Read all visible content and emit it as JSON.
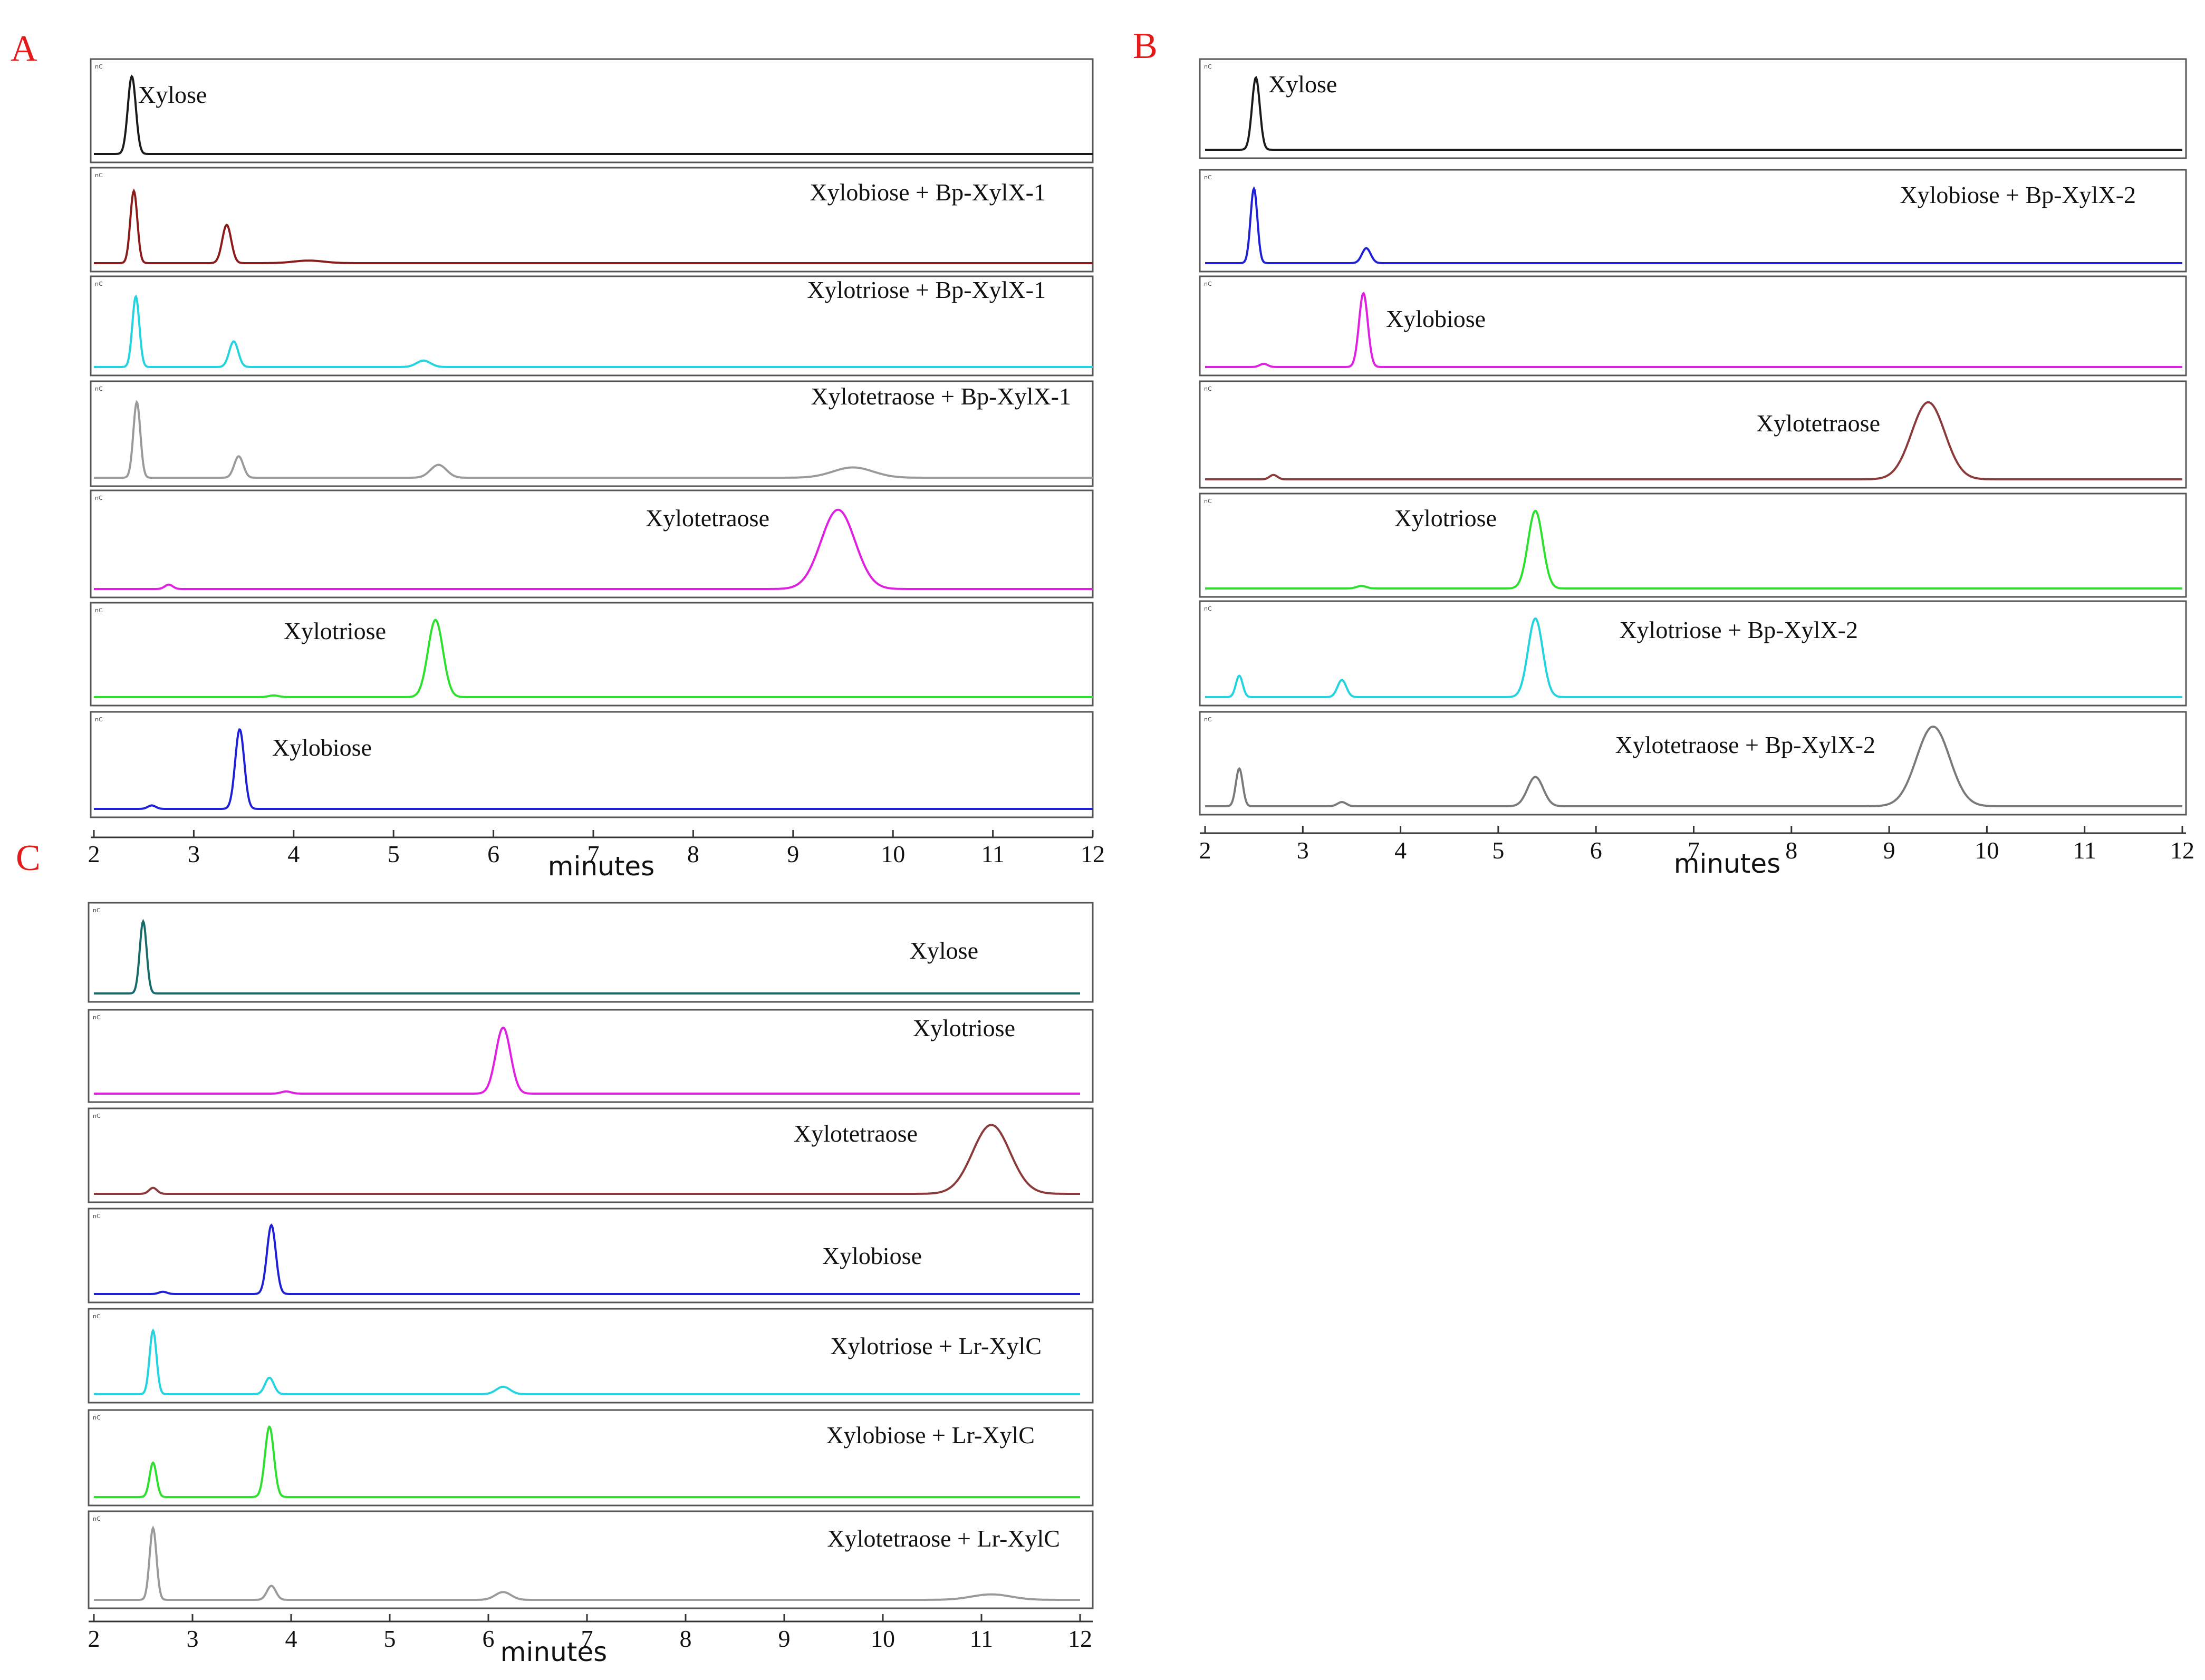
{
  "figure": {
    "panels": [
      {
        "letter": "A",
        "letter_color": "#e31b1b",
        "xlabel": "minutes",
        "x_ticks": [
          2,
          3,
          4,
          5,
          6,
          7,
          8,
          9,
          10,
          11,
          12
        ]
      },
      {
        "letter": "B",
        "letter_color": "#e31b1b",
        "xlabel": "minutes",
        "x_ticks": [
          2,
          3,
          4,
          5,
          6,
          7,
          8,
          9,
          10,
          11,
          12
        ]
      },
      {
        "letter": "C",
        "letter_color": "#e31b1b",
        "xlabel": "minutes",
        "x_ticks": [
          2,
          3,
          4,
          5,
          6,
          7,
          8,
          9,
          10,
          11,
          12
        ]
      }
    ]
  },
  "chart_data": [
    {
      "type": "line",
      "panel": "A",
      "xlabel": "minutes",
      "xlim": [
        2,
        12
      ],
      "traces": [
        {
          "label": "Xylose",
          "color": "#1a1a1a",
          "peaks": [
            {
              "x": 2.38,
              "height": 0.92,
              "width": 0.04
            }
          ]
        },
        {
          "label": "Xylobiose + Bp-XylX-1",
          "color": "#8b1a1a",
          "peaks": [
            {
              "x": 2.4,
              "height": 0.85,
              "width": 0.035
            },
            {
              "x": 3.33,
              "height": 0.45,
              "width": 0.045
            },
            {
              "x": 4.15,
              "height": 0.03,
              "width": 0.15
            }
          ]
        },
        {
          "label": "Xylotriose + Bp-XylX-1",
          "color": "#22d4e0",
          "peaks": [
            {
              "x": 2.42,
              "height": 0.88,
              "width": 0.035
            },
            {
              "x": 3.4,
              "height": 0.32,
              "width": 0.045
            },
            {
              "x": 5.3,
              "height": 0.08,
              "width": 0.07
            }
          ]
        },
        {
          "label": "Xylotetraose  + Bp-XylX-1",
          "color": "#9a9a9a",
          "peaks": [
            {
              "x": 2.43,
              "height": 0.88,
              "width": 0.035
            },
            {
              "x": 3.45,
              "height": 0.25,
              "width": 0.045
            },
            {
              "x": 5.45,
              "height": 0.15,
              "width": 0.08
            },
            {
              "x": 9.6,
              "height": 0.12,
              "width": 0.2
            }
          ]
        },
        {
          "label": "Xylotetraose",
          "color": "#e020e0",
          "peaks": [
            {
              "x": 2.75,
              "height": 0.05,
              "width": 0.04
            },
            {
              "x": 9.45,
              "height": 0.9,
              "width": 0.17
            }
          ]
        },
        {
          "label": "Xylotriose",
          "color": "#2ee02e",
          "peaks": [
            {
              "x": 3.8,
              "height": 0.02,
              "width": 0.05
            },
            {
              "x": 5.42,
              "height": 0.92,
              "width": 0.075
            }
          ]
        },
        {
          "label": "Xylobiose",
          "color": "#1f1fd6",
          "peaks": [
            {
              "x": 2.58,
              "height": 0.04,
              "width": 0.04
            },
            {
              "x": 3.46,
              "height": 0.92,
              "width": 0.045
            }
          ]
        }
      ]
    },
    {
      "type": "line",
      "panel": "B",
      "xlabel": "minutes",
      "xlim": [
        2,
        12
      ],
      "traces": [
        {
          "label": "Xylose",
          "color": "#1a1a1a",
          "peaks": [
            {
              "x": 2.52,
              "height": 0.9,
              "width": 0.04
            }
          ]
        },
        {
          "label": "Xylobiose + Bp-XylX-2",
          "color": "#1f1fd6",
          "peaks": [
            {
              "x": 2.5,
              "height": 0.9,
              "width": 0.035
            },
            {
              "x": 3.65,
              "height": 0.18,
              "width": 0.045
            }
          ]
        },
        {
          "label": "Xylobiose",
          "color": "#e020e0",
          "peaks": [
            {
              "x": 2.6,
              "height": 0.04,
              "width": 0.04
            },
            {
              "x": 3.62,
              "height": 0.92,
              "width": 0.045
            }
          ]
        },
        {
          "label": "Xylotetraose",
          "color": "#8b3a3a",
          "peaks": [
            {
              "x": 2.7,
              "height": 0.05,
              "width": 0.04
            },
            {
              "x": 9.4,
              "height": 0.88,
              "width": 0.17
            }
          ]
        },
        {
          "label": "Xylotriose",
          "color": "#2ee02e",
          "peaks": [
            {
              "x": 3.6,
              "height": 0.03,
              "width": 0.05
            },
            {
              "x": 5.38,
              "height": 0.92,
              "width": 0.075
            }
          ]
        },
        {
          "label": "Xylotriose + Bp-XylX-2",
          "color": "#22d4e0",
          "peaks": [
            {
              "x": 2.35,
              "height": 0.25,
              "width": 0.035
            },
            {
              "x": 3.4,
              "height": 0.2,
              "width": 0.045
            },
            {
              "x": 5.38,
              "height": 0.92,
              "width": 0.075
            }
          ]
        },
        {
          "label": "Xylotetraose  + Bp-XylX-2",
          "color": "#7a7a7a",
          "peaks": [
            {
              "x": 2.35,
              "height": 0.45,
              "width": 0.035
            },
            {
              "x": 3.4,
              "height": 0.05,
              "width": 0.045
            },
            {
              "x": 5.38,
              "height": 0.35,
              "width": 0.08
            },
            {
              "x": 9.45,
              "height": 0.95,
              "width": 0.17
            }
          ]
        }
      ]
    },
    {
      "type": "line",
      "panel": "C",
      "xlabel": "minutes",
      "xlim": [
        2,
        12
      ],
      "traces": [
        {
          "label": "Xylose",
          "color": "#1a6a6a",
          "peaks": [
            {
              "x": 2.5,
              "height": 0.9,
              "width": 0.035
            }
          ]
        },
        {
          "label": "Xylotriose",
          "color": "#e020e0",
          "peaks": [
            {
              "x": 3.95,
              "height": 0.03,
              "width": 0.05
            },
            {
              "x": 6.15,
              "height": 0.9,
              "width": 0.075
            }
          ]
        },
        {
          "label": "Xylotetraose",
          "color": "#8b3a3a",
          "peaks": [
            {
              "x": 2.6,
              "height": 0.08,
              "width": 0.04
            },
            {
              "x": 11.1,
              "height": 0.92,
              "width": 0.19
            }
          ]
        },
        {
          "label": "Xylobiose",
          "color": "#1f1fd6",
          "peaks": [
            {
              "x": 2.7,
              "height": 0.03,
              "width": 0.04
            },
            {
              "x": 3.8,
              "height": 0.92,
              "width": 0.045
            }
          ]
        },
        {
          "label": "Xylotriose + Lr-XylC",
          "color": "#22d4e0",
          "peaks": [
            {
              "x": 2.6,
              "height": 0.85,
              "width": 0.035
            },
            {
              "x": 3.78,
              "height": 0.22,
              "width": 0.045
            },
            {
              "x": 6.15,
              "height": 0.1,
              "width": 0.07
            }
          ]
        },
        {
          "label": "Xylobiose + Lr-XylC",
          "color": "#2ee02e",
          "peaks": [
            {
              "x": 2.6,
              "height": 0.45,
              "width": 0.035
            },
            {
              "x": 3.78,
              "height": 0.92,
              "width": 0.045
            }
          ]
        },
        {
          "label": "Xylotetraose  + Lr-XylC",
          "color": "#9a9a9a",
          "peaks": [
            {
              "x": 2.6,
              "height": 0.92,
              "width": 0.035
            },
            {
              "x": 3.8,
              "height": 0.18,
              "width": 0.045
            },
            {
              "x": 6.15,
              "height": 0.1,
              "width": 0.08
            },
            {
              "x": 11.1,
              "height": 0.07,
              "width": 0.2
            }
          ]
        }
      ]
    }
  ]
}
